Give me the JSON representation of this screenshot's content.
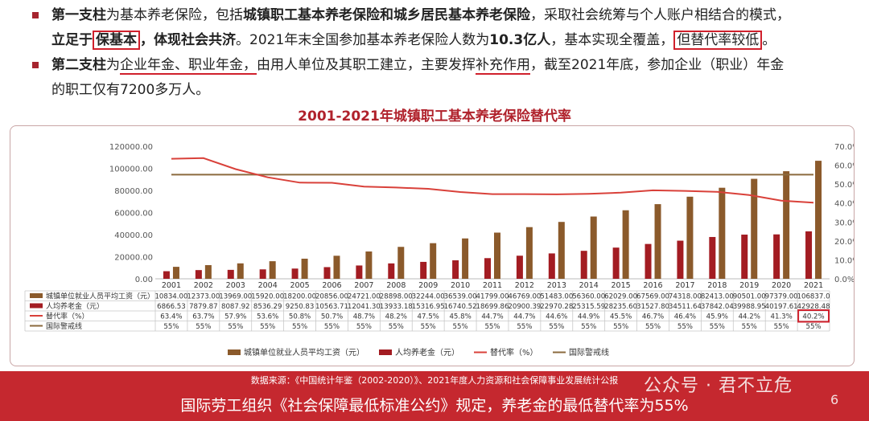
{
  "bullets": [
    {
      "l1": {
        "t1": "第一支柱",
        "t2": "为基本养老保险，包括",
        "t3": "城镇职工基本养老保险和城乡居民基本养老保险",
        "t4": "，采取社会统筹与个人账户相结合的模式，"
      },
      "l2": {
        "t1": "立足于",
        "t2": "保基本",
        "t3": "，体现社会共济",
        "t4": "。2021年末全国参加基本养老保险人数为",
        "t5": "10.3亿人",
        "t6": "，基本实现全覆盖，",
        "t7": "但替代率较低",
        "t8": "。"
      }
    },
    {
      "l1": {
        "t1": "第二支柱",
        "t2": "为",
        "t3": "企业年金、职业年金，",
        "t4": "由用人单位及其职工建立，主要发挥",
        "t5": "补充作用",
        "t6": "，截至2021年底，参加企业（职业）年金"
      },
      "l2": {
        "t1": "的职工仅有7200多万人。"
      }
    }
  ],
  "colors": {
    "wage": "#8b5a2b",
    "pension": "#a31c22",
    "rate": "#d9413a",
    "warn": "#8b6a3e",
    "accent": "#c5282f"
  },
  "chart_data": {
    "type": "bar",
    "title": "2001-2021年城镇职工基本养老保险替代率",
    "categories": [
      "2001",
      "2002",
      "2003",
      "2004",
      "2005",
      "2006",
      "2007",
      "2008",
      "2009",
      "2010",
      "2011",
      "2012",
      "2013",
      "2014",
      "2015",
      "2016",
      "2017",
      "2018",
      "2019",
      "2020",
      "2021"
    ],
    "y_left": {
      "ticks": [
        "0.00",
        "20000.00",
        "40000.00",
        "60000.00",
        "80000.00",
        "100000.00",
        "120000.00"
      ],
      "ylim": [
        0,
        120000
      ]
    },
    "y_right": {
      "ticks": [
        "0.0%",
        "10.0%",
        "20.0%",
        "30.0%",
        "40.0%",
        "50.0%",
        "60.0%",
        "70.0%"
      ],
      "ylim": [
        0,
        70
      ]
    },
    "series": [
      {
        "name": "城镇单位就业人员平均工资（元）",
        "kind": "bar",
        "axis": "left",
        "values": [
          10834,
          12373,
          13969,
          15920,
          18200,
          20856,
          24721,
          28898,
          32244,
          36539,
          41799,
          46769,
          51483,
          56360,
          62029,
          67569,
          74318,
          82413,
          90501,
          97379,
          106837
        ]
      },
      {
        "name": "人均养老金（元）",
        "kind": "bar",
        "axis": "left",
        "values": [
          6866.53,
          7879.87,
          8087.92,
          8536.29,
          9250.83,
          10563.71,
          12041.3,
          13933.18,
          15316.95,
          16740.52,
          18699.86,
          20900.39,
          22970.28,
          25315.59,
          28235.6,
          31527.8,
          34511.64,
          37842.04,
          39988.95,
          40197.61,
          42928.48
        ]
      },
      {
        "name": "替代率（%）",
        "kind": "line",
        "axis": "right",
        "values": [
          63.4,
          63.7,
          57.9,
          53.6,
          50.8,
          50.7,
          48.7,
          48.2,
          47.5,
          45.8,
          44.7,
          44.7,
          44.6,
          44.9,
          45.5,
          46.7,
          46.4,
          45.9,
          44.2,
          41.3,
          40.2
        ]
      },
      {
        "name": "国际警戒线",
        "kind": "line",
        "axis": "right",
        "values": [
          55,
          55,
          55,
          55,
          55,
          55,
          55,
          55,
          55,
          55,
          55,
          55,
          55,
          55,
          55,
          55,
          55,
          55,
          55,
          55,
          55
        ]
      }
    ],
    "table_rows": [
      [
        "10834.00",
        "12373.00",
        "13969.00",
        "15920.00",
        "18200.00",
        "20856.00",
        "24721.00",
        "28898.00",
        "32244.00",
        "36539.00",
        "41799.00",
        "46769.00",
        "51483.00",
        "56360.00",
        "62029.00",
        "67569.00",
        "74318.00",
        "82413.00",
        "90501.00",
        "97379.00",
        "106837.0"
      ],
      [
        "6866.53",
        "7879.87",
        "8087.92",
        "8536.29",
        "9250.83",
        "10563.71",
        "12041.30",
        "13933.18",
        "15316.95",
        "16740.52",
        "18699.86",
        "20900.39",
        "22970.28",
        "25315.59",
        "28235.60",
        "31527.80",
        "34511.64",
        "37842.04",
        "39988.95",
        "40197.61",
        "42928.48"
      ],
      [
        "63.4%",
        "63.7%",
        "57.9%",
        "53.6%",
        "50.8%",
        "50.7%",
        "48.7%",
        "48.2%",
        "47.5%",
        "45.8%",
        "44.7%",
        "44.7%",
        "44.6%",
        "44.9%",
        "45.5%",
        "46.7%",
        "46.4%",
        "45.9%",
        "44.2%",
        "41.3%",
        "40.2%"
      ],
      [
        "55%",
        "55%",
        "55%",
        "55%",
        "55%",
        "55%",
        "55%",
        "55%",
        "55%",
        "55%",
        "55%",
        "55%",
        "55%",
        "55%",
        "55%",
        "55%",
        "55%",
        "55%",
        "55%",
        "55%",
        "55%"
      ]
    ],
    "highlight": "40.2%",
    "legend_position": "bottom"
  },
  "footer": {
    "source": "数据来源：《中国统计年鉴（2002-2020）》、2021年度人力资源和社会保障事业发展统计公报",
    "rule": "国际劳工组织《社会保障最低标准公约》规定，养老金的最低替代率为55%",
    "watermark": "公众号 · 君不立危",
    "page": "6"
  }
}
